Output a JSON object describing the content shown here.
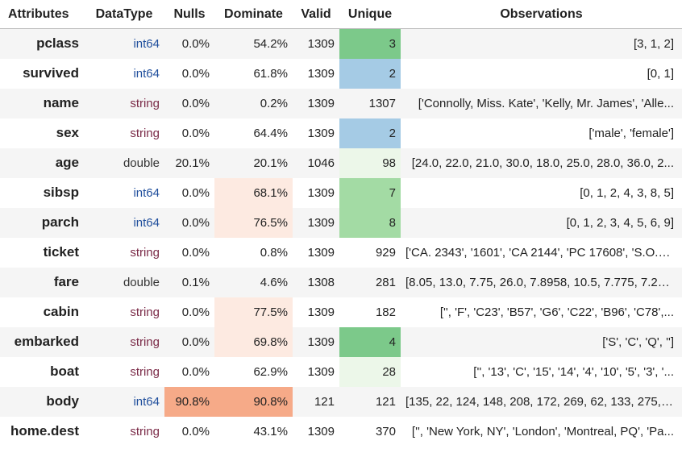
{
  "headers": [
    "Attributes",
    "DataType",
    "Nulls",
    "Dominate",
    "Valid",
    "Unique",
    "Observations"
  ],
  "colors": {
    "unique_green_strong": "#7cc98a",
    "unique_green_mid": "#a3dba4",
    "unique_green_light": "#ecf7e9",
    "unique_blue": "#a5cbe5",
    "dominate_light": "#fdeae1",
    "dominate_strong": "#f6aa88",
    "nulls_strong": "#f6aa88"
  },
  "rows": [
    {
      "attr": "pclass",
      "type": "int64",
      "nulls": "0.0%",
      "dominate": "54.2%",
      "valid": "1309",
      "unique": "3",
      "obs": "[3, 1, 2]",
      "unique_bg": "#7cc98a",
      "dom_bg": "",
      "nulls_bg": ""
    },
    {
      "attr": "survived",
      "type": "int64",
      "nulls": "0.0%",
      "dominate": "61.8%",
      "valid": "1309",
      "unique": "2",
      "obs": "[0, 1]",
      "unique_bg": "#a5cbe5",
      "dom_bg": "",
      "nulls_bg": ""
    },
    {
      "attr": "name",
      "type": "string",
      "nulls": "0.0%",
      "dominate": "0.2%",
      "valid": "1309",
      "unique": "1307",
      "obs": "['Connolly, Miss. Kate', 'Kelly, Mr. James', 'Alle...",
      "unique_bg": "",
      "dom_bg": "",
      "nulls_bg": ""
    },
    {
      "attr": "sex",
      "type": "string",
      "nulls": "0.0%",
      "dominate": "64.4%",
      "valid": "1309",
      "unique": "2",
      "obs": "['male', 'female']",
      "unique_bg": "#a5cbe5",
      "dom_bg": "",
      "nulls_bg": ""
    },
    {
      "attr": "age",
      "type": "double",
      "nulls": "20.1%",
      "dominate": "20.1%",
      "valid": "1046",
      "unique": "98",
      "obs": "[24.0, 22.0, 21.0, 30.0, 18.0, 25.0, 28.0, 36.0, 2...",
      "unique_bg": "#ecf7e9",
      "dom_bg": "",
      "nulls_bg": ""
    },
    {
      "attr": "sibsp",
      "type": "int64",
      "nulls": "0.0%",
      "dominate": "68.1%",
      "valid": "1309",
      "unique": "7",
      "obs": "[0, 1, 2, 4, 3, 8, 5]",
      "unique_bg": "#a3dba4",
      "dom_bg": "#fdeae1",
      "nulls_bg": ""
    },
    {
      "attr": "parch",
      "type": "int64",
      "nulls": "0.0%",
      "dominate": "76.5%",
      "valid": "1309",
      "unique": "8",
      "obs": "[0, 1, 2, 3, 4, 5, 6, 9]",
      "unique_bg": "#a3dba4",
      "dom_bg": "#fdeae1",
      "nulls_bg": ""
    },
    {
      "attr": "ticket",
      "type": "string",
      "nulls": "0.0%",
      "dominate": "0.8%",
      "valid": "1309",
      "unique": "929",
      "obs": "['CA. 2343', '1601', 'CA 2144', 'PC 17608', 'S.O.C...",
      "unique_bg": "",
      "dom_bg": "",
      "nulls_bg": ""
    },
    {
      "attr": "fare",
      "type": "double",
      "nulls": "0.1%",
      "dominate": "4.6%",
      "valid": "1308",
      "unique": "281",
      "obs": "[8.05, 13.0, 7.75, 26.0, 7.8958, 10.5, 7.775, 7.22...",
      "unique_bg": "",
      "dom_bg": "",
      "nulls_bg": ""
    },
    {
      "attr": "cabin",
      "type": "string",
      "nulls": "0.0%",
      "dominate": "77.5%",
      "valid": "1309",
      "unique": "182",
      "obs": "['', 'F', 'C23', 'B57', 'G6', 'C22', 'B96', 'C78',...",
      "unique_bg": "",
      "dom_bg": "#fdeae1",
      "nulls_bg": ""
    },
    {
      "attr": "embarked",
      "type": "string",
      "nulls": "0.0%",
      "dominate": "69.8%",
      "valid": "1309",
      "unique": "4",
      "obs": "['S', 'C', 'Q', '']",
      "unique_bg": "#7cc98a",
      "dom_bg": "#fdeae1",
      "nulls_bg": ""
    },
    {
      "attr": "boat",
      "type": "string",
      "nulls": "0.0%",
      "dominate": "62.9%",
      "valid": "1309",
      "unique": "28",
      "obs": "['', '13', 'C', '15', '14', '4', '10', '5', '3', '...",
      "unique_bg": "#ecf7e9",
      "dom_bg": "",
      "nulls_bg": ""
    },
    {
      "attr": "body",
      "type": "int64",
      "nulls": "90.8%",
      "dominate": "90.8%",
      "valid": "121",
      "unique": "121",
      "obs": "[135, 22, 124, 148, 208, 172, 269, 62, 133, 275, 1...",
      "unique_bg": "",
      "dom_bg": "#f6aa88",
      "nulls_bg": "#f6aa88"
    },
    {
      "attr": "home.dest",
      "type": "string",
      "nulls": "0.0%",
      "dominate": "43.1%",
      "valid": "1309",
      "unique": "370",
      "obs": "['', 'New York, NY', 'London', 'Montreal, PQ', 'Pa...",
      "unique_bg": "",
      "dom_bg": "",
      "nulls_bg": ""
    }
  ]
}
